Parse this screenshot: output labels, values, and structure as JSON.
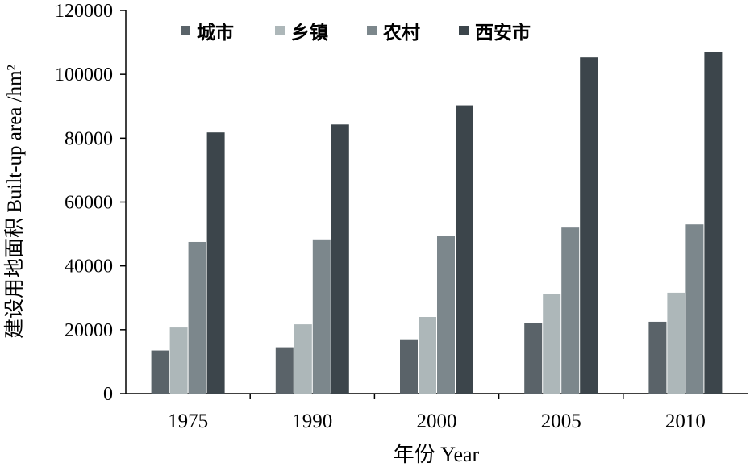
{
  "chart_data": {
    "type": "bar",
    "categories": [
      "1975",
      "1990",
      "2000",
      "2005",
      "2010"
    ],
    "series": [
      {
        "name": "城市",
        "color": "#5a6369",
        "values": [
          13500,
          14500,
          17000,
          22000,
          22500
        ]
      },
      {
        "name": "乡镇",
        "color": "#adb7b9",
        "values": [
          20700,
          21700,
          24000,
          31200,
          31600
        ]
      },
      {
        "name": "农村",
        "color": "#7c878c",
        "values": [
          47500,
          48300,
          49300,
          52000,
          53000
        ]
      },
      {
        "name": "西安市",
        "color": "#3c454b",
        "values": [
          81800,
          84300,
          90300,
          105300,
          107000
        ]
      }
    ],
    "yticks": [
      "0",
      "20000",
      "40000",
      "60000",
      "80000",
      "100000",
      "120000"
    ],
    "ylim": [
      0,
      120000
    ],
    "xlabel": "年份 Year",
    "ylabel": "建设用地面积 Built-up area /hm²",
    "legend_position": "top",
    "grid": false
  }
}
